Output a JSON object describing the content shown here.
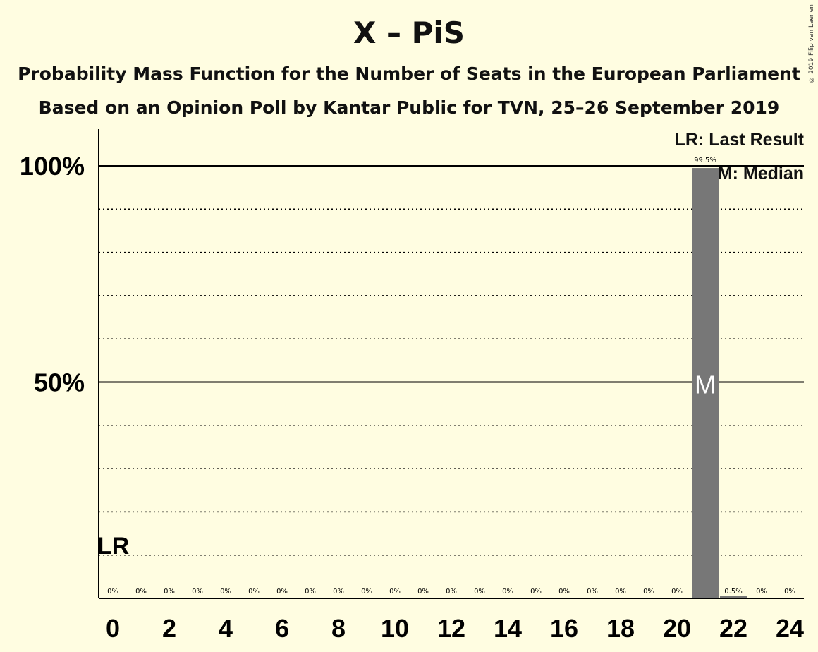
{
  "header": {
    "title": "X – PiS",
    "subtitle1": "Probability Mass Function for the Number of Seats in the European Parliament",
    "subtitle2": "Based on an Opinion Poll by Kantar Public for TVN, 25–26 September 2019",
    "copyright": "© 2019 Filip van Laenen"
  },
  "legend": {
    "last_result": "LR: Last Result",
    "median": "M: Median"
  },
  "colors": {
    "background": "#fffde1",
    "bar": "#777777",
    "axis": "#000000"
  },
  "chart_data": {
    "type": "bar",
    "title": "X – PiS",
    "xlabel": "",
    "ylabel": "",
    "x": [
      0,
      1,
      2,
      3,
      4,
      5,
      6,
      7,
      8,
      9,
      10,
      11,
      12,
      13,
      14,
      15,
      16,
      17,
      18,
      19,
      20,
      21,
      22,
      23,
      24
    ],
    "values": [
      0,
      0,
      0,
      0,
      0,
      0,
      0,
      0,
      0,
      0,
      0,
      0,
      0,
      0,
      0,
      0,
      0,
      0,
      0,
      0,
      0,
      99.5,
      0.5,
      0,
      0
    ],
    "value_labels": [
      "0%",
      "0%",
      "0%",
      "0%",
      "0%",
      "0%",
      "0%",
      "0%",
      "0%",
      "0%",
      "0%",
      "0%",
      "0%",
      "0%",
      "0%",
      "0%",
      "0%",
      "0%",
      "0%",
      "0%",
      "0%",
      "99.5%",
      "0.5%",
      "0%",
      "0%"
    ],
    "x_tick_labels": [
      "0",
      "2",
      "4",
      "6",
      "8",
      "10",
      "12",
      "14",
      "16",
      "18",
      "20",
      "22",
      "24"
    ],
    "x_ticks": [
      0,
      2,
      4,
      6,
      8,
      10,
      12,
      14,
      16,
      18,
      20,
      22,
      24
    ],
    "y_tick_labels": [
      "50%",
      "100%"
    ],
    "y_ticks": [
      50,
      100
    ],
    "ylim": [
      0,
      100
    ],
    "gridlines": [
      10,
      20,
      30,
      40,
      60,
      70,
      80,
      90
    ],
    "last_result_seat": 0,
    "last_result_label": "LR",
    "median_seat": 21,
    "median_label": "M",
    "legend_position": "top-right"
  }
}
